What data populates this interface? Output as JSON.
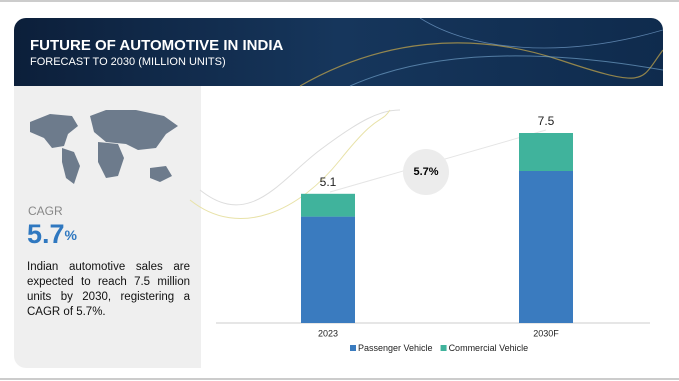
{
  "header": {
    "title": "FUTURE OF AUTOMOTIVE IN INDIA",
    "subtitle": "FORECAST TO 2030 (MILLION UNITS)"
  },
  "summary": {
    "label": "CAGR",
    "value": "5.7",
    "unit": "%",
    "text": "Indian automotive sales are expected to reach 7.5 million units by 2030, registering a CAGR of 5.7%."
  },
  "chart_data": {
    "type": "stacked_bar",
    "categories": [
      "2023",
      "2030F"
    ],
    "series": [
      {
        "name": "Passenger Vehicle",
        "color": "#3a7bbf",
        "values": [
          4.2,
          6.0
        ]
      },
      {
        "name": "Commercial Vehicle",
        "color": "#40b39c",
        "values": [
          0.9,
          1.5
        ]
      }
    ],
    "totals": [
      5.1,
      7.5
    ],
    "cagr_label": "5.7%"
  }
}
